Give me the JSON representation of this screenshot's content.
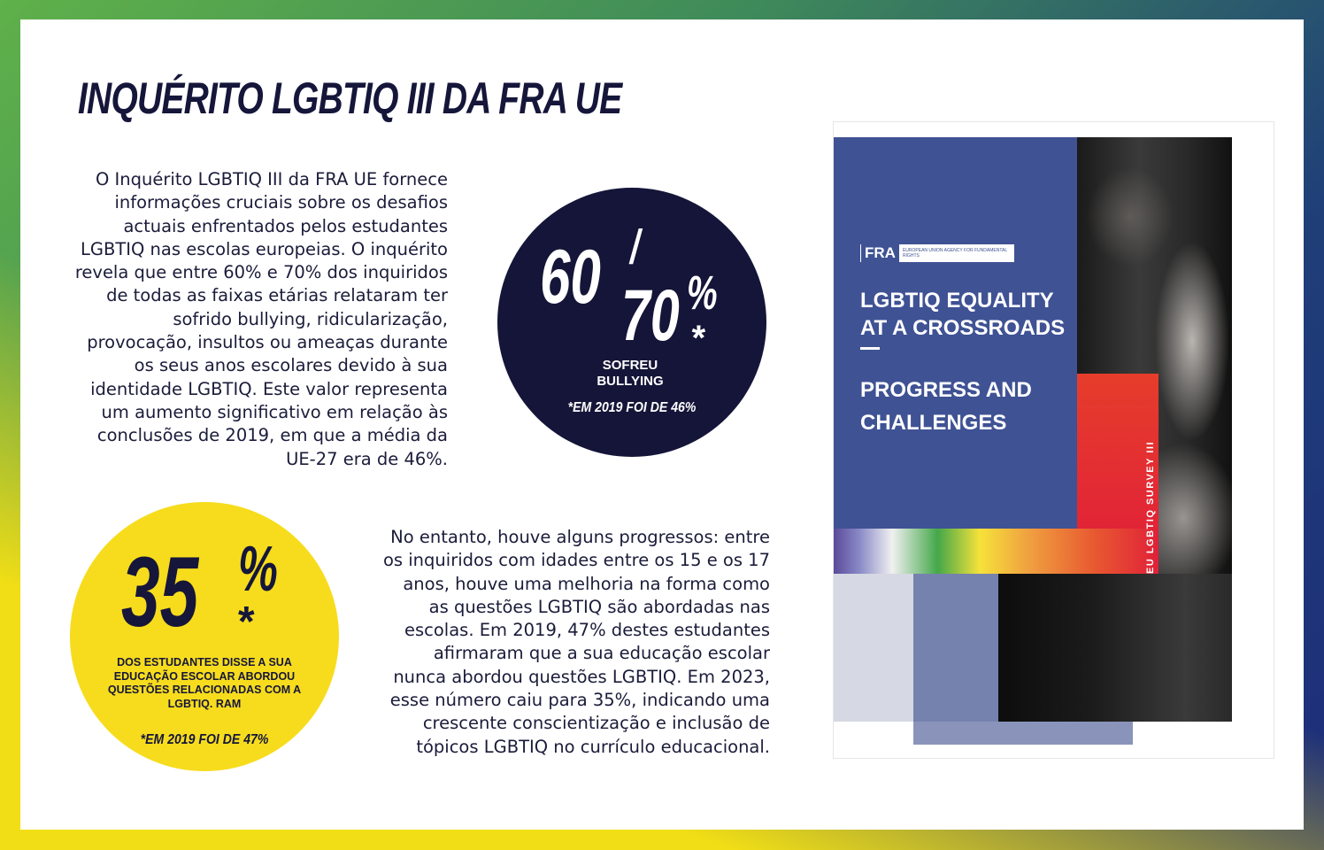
{
  "title": "INQUÉRITO LGBTIQ III DA FRA UE",
  "intro_paragraph": "O Inquérito LGBTIQ III da FRA UE fornece informações cruciais sobre os desafios actuais enfrentados pelos estudantes LGBTIQ nas escolas europeias. O inquérito revela que entre 60% e 70% dos inquiridos de todas as faixas etárias relataram ter sofrido bullying, ridicularização, provocação, insultos ou ameaças durante os seus anos escolares devido à sua identidade LGBTIQ. Este valor representa um aumento significativo em relação às conclusões de 2019, em que a média da UE-27 era de 46%.",
  "progress_paragraph": "No entanto, houve alguns progressos: entre os inquiridos com idades entre os 15 e os 17 anos, houve uma melhoria na forma como as questões LGBTIQ são abordadas nas escolas. Em 2019, 47% destes estudantes afirmaram que a sua educação escolar nunca abordou questões LGBTIQ. Em 2023, esse número caiu para 35%, indicando uma crescente conscientização e inclusão de tópicos LGBTIQ no currículo educacional.",
  "stat_bullying": {
    "value_a": "60",
    "slash": "/",
    "value_b": "70",
    "percent": "%",
    "asterisk": "*",
    "label": "SOFREU BULLYING",
    "note": "*EM 2019 FOI DE 46%"
  },
  "stat_education": {
    "value": "35",
    "percent": "%",
    "asterisk": "*",
    "label": "DOS ESTUDANTES DISSE A SUA EDUCAÇÃO ESCOLAR ABORDOU QUESTÕES RELACIONADAS COM A LGBTIQ. RAM",
    "note": "*EM 2019 FOI DE 47%"
  },
  "cover": {
    "logo_mark": "FRA",
    "logo_sub": "EUROPEAN UNION AGENCY FOR FUNDAMENTAL RIGHTS",
    "title": "LGBTIQ EQUALITY AT A CROSSROADS",
    "subtitle": "PROGRESS AND CHALLENGES",
    "spine": "EU LGBTIQ SURVEY III"
  },
  "colors": {
    "navy": "#141538",
    "yellow": "#f7dc1d",
    "cover_blue": "#3f5294"
  }
}
